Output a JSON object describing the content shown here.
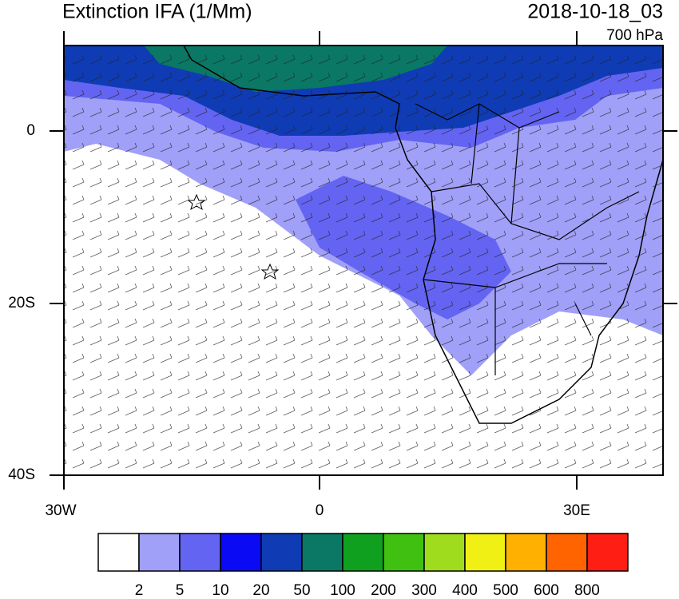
{
  "header": {
    "title": "Extinction IFA (1/Mm)",
    "date": "2018-10-18_03",
    "level": "700 hPa"
  },
  "axes": {
    "lat_labels": [
      "0",
      "20S",
      "40S"
    ],
    "lon_labels": [
      "30W",
      "0",
      "30E"
    ]
  },
  "colorbar": {
    "labels": [
      2,
      5,
      10,
      20,
      50,
      100,
      200,
      300,
      400,
      500,
      600,
      800
    ],
    "colors": [
      "#ffffff",
      "#a0a0f8",
      "#6464f2",
      "#0a0af5",
      "#0f3cb4",
      "#0a7864",
      "#10a020",
      "#40c010",
      "#a0dc1e",
      "#f0f014",
      "#ffb000",
      "#ff6400",
      "#ff1e14"
    ]
  }
}
